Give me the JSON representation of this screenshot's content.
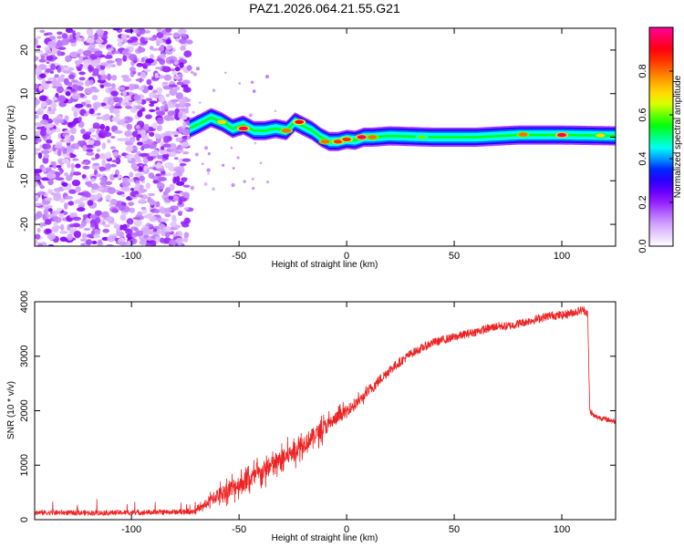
{
  "title": "PAZ1.2026.064.21.55.G21",
  "chart_data": [
    {
      "type": "heatmap",
      "xlabel": "Height of straight line (km)",
      "ylabel": "Frequency (Hz)",
      "xlim": [
        -145,
        125
      ],
      "ylim": [
        -25,
        25
      ],
      "xticks": [
        -100,
        -50,
        0,
        50,
        100
      ],
      "yticks": [
        -20,
        -10,
        0,
        10,
        20
      ],
      "xtick_labels": [
        "-100",
        "-50",
        "0",
        "50",
        "100"
      ],
      "ytick_labels": [
        "-20",
        "-10",
        "0",
        "10",
        "20"
      ],
      "colorbar": {
        "label": "Normalized spectral amplitude",
        "range": [
          0,
          1
        ],
        "ticks": [
          0,
          0.2,
          0.4,
          0.6,
          0.8
        ],
        "tick_labels": [
          "0.0",
          "0.2",
          "0.4",
          "0.6",
          "0.8"
        ],
        "colors": [
          "#ffffff",
          "#cc99ff",
          "#8800ff",
          "#0000ff",
          "#00ffff",
          "#00ff00",
          "#ffff00",
          "#ff8800",
          "#ff0000",
          "#ff0099"
        ]
      },
      "noise_region_x": [
        -145,
        -73
      ],
      "ridge": {
        "x": [
          -73,
          -68,
          -63,
          -58,
          -53,
          -48,
          -43,
          -38,
          -33,
          -28,
          -24,
          -20,
          -16,
          -12,
          -8,
          -4,
          0,
          4,
          8,
          12,
          20,
          40,
          60,
          80,
          100,
          125
        ],
        "freq": [
          2,
          3.2,
          4.5,
          3.5,
          2,
          2.8,
          1.5,
          1.5,
          2,
          1.5,
          3.5,
          2.5,
          1.5,
          0,
          -1,
          -1,
          -0.5,
          -0.7,
          0,
          0,
          0.3,
          0,
          0,
          0.5,
          0.5,
          0.3
        ]
      },
      "ridge_peaks": [
        {
          "x": -58,
          "freq": 3.5,
          "value": 0.7
        },
        {
          "x": -48,
          "freq": 2,
          "value": 0.95
        },
        {
          "x": -28,
          "freq": 1.5,
          "value": 0.8
        },
        {
          "x": -22,
          "freq": 3.5,
          "value": 0.9
        },
        {
          "x": -10,
          "freq": -1,
          "value": 0.8
        },
        {
          "x": -4,
          "freq": -1,
          "value": 0.85
        },
        {
          "x": 0,
          "freq": -0.5,
          "value": 0.85
        },
        {
          "x": 7,
          "freq": 0,
          "value": 0.95
        },
        {
          "x": 12,
          "freq": 0,
          "value": 0.8
        },
        {
          "x": 35,
          "freq": 0,
          "value": 0.6
        },
        {
          "x": 82,
          "freq": 0.6,
          "value": 0.8
        },
        {
          "x": 100,
          "freq": 0.5,
          "value": 0.95
        },
        {
          "x": 118,
          "freq": 0.4,
          "value": 0.7
        }
      ]
    },
    {
      "type": "line",
      "xlabel": "Height of straight line (km)",
      "ylabel": "SNR (10 * v/v)",
      "xlim": [
        -145,
        125
      ],
      "ylim": [
        0,
        4000
      ],
      "xticks": [
        -100,
        -50,
        0,
        50,
        100
      ],
      "yticks": [
        0,
        1000,
        2000,
        3000,
        4000
      ],
      "xtick_labels": [
        "-100",
        "-50",
        "0",
        "50",
        "100"
      ],
      "ytick_labels": [
        "0",
        "1000",
        "2000",
        "3000",
        "4000"
      ],
      "color": "#ee2222",
      "series": [
        {
          "x": [
            -145,
            -120,
            -100,
            -80,
            -70,
            -65,
            -60,
            -55,
            -50,
            -45,
            -40,
            -35,
            -30,
            -25,
            -20,
            -15,
            -10,
            -5,
            0,
            5,
            10,
            15,
            20,
            25,
            30,
            35,
            40,
            45,
            50,
            55,
            60,
            65,
            70,
            75,
            80,
            85,
            90,
            95,
            100,
            105,
            110,
            112,
            113,
            115,
            120,
            125
          ],
          "values": [
            130,
            125,
            130,
            140,
            160,
            300,
            450,
            550,
            650,
            750,
            850,
            980,
            1100,
            1250,
            1400,
            1550,
            1700,
            1850,
            2000,
            2150,
            2350,
            2550,
            2750,
            2900,
            3050,
            3150,
            3250,
            3300,
            3350,
            3400,
            3450,
            3500,
            3550,
            3550,
            3600,
            3650,
            3700,
            3750,
            3750,
            3800,
            3850,
            3800,
            2000,
            1900,
            1850,
            1800
          ],
          "noise": [
            60,
            60,
            60,
            60,
            80,
            180,
            250,
            300,
            350,
            350,
            350,
            350,
            350,
            350,
            350,
            300,
            300,
            250,
            200,
            180,
            150,
            130,
            120,
            110,
            100,
            100,
            100,
            100,
            100,
            100,
            100,
            100,
            100,
            100,
            100,
            100,
            100,
            100,
            100,
            100,
            100,
            100,
            80,
            60,
            60,
            60
          ]
        }
      ]
    }
  ]
}
